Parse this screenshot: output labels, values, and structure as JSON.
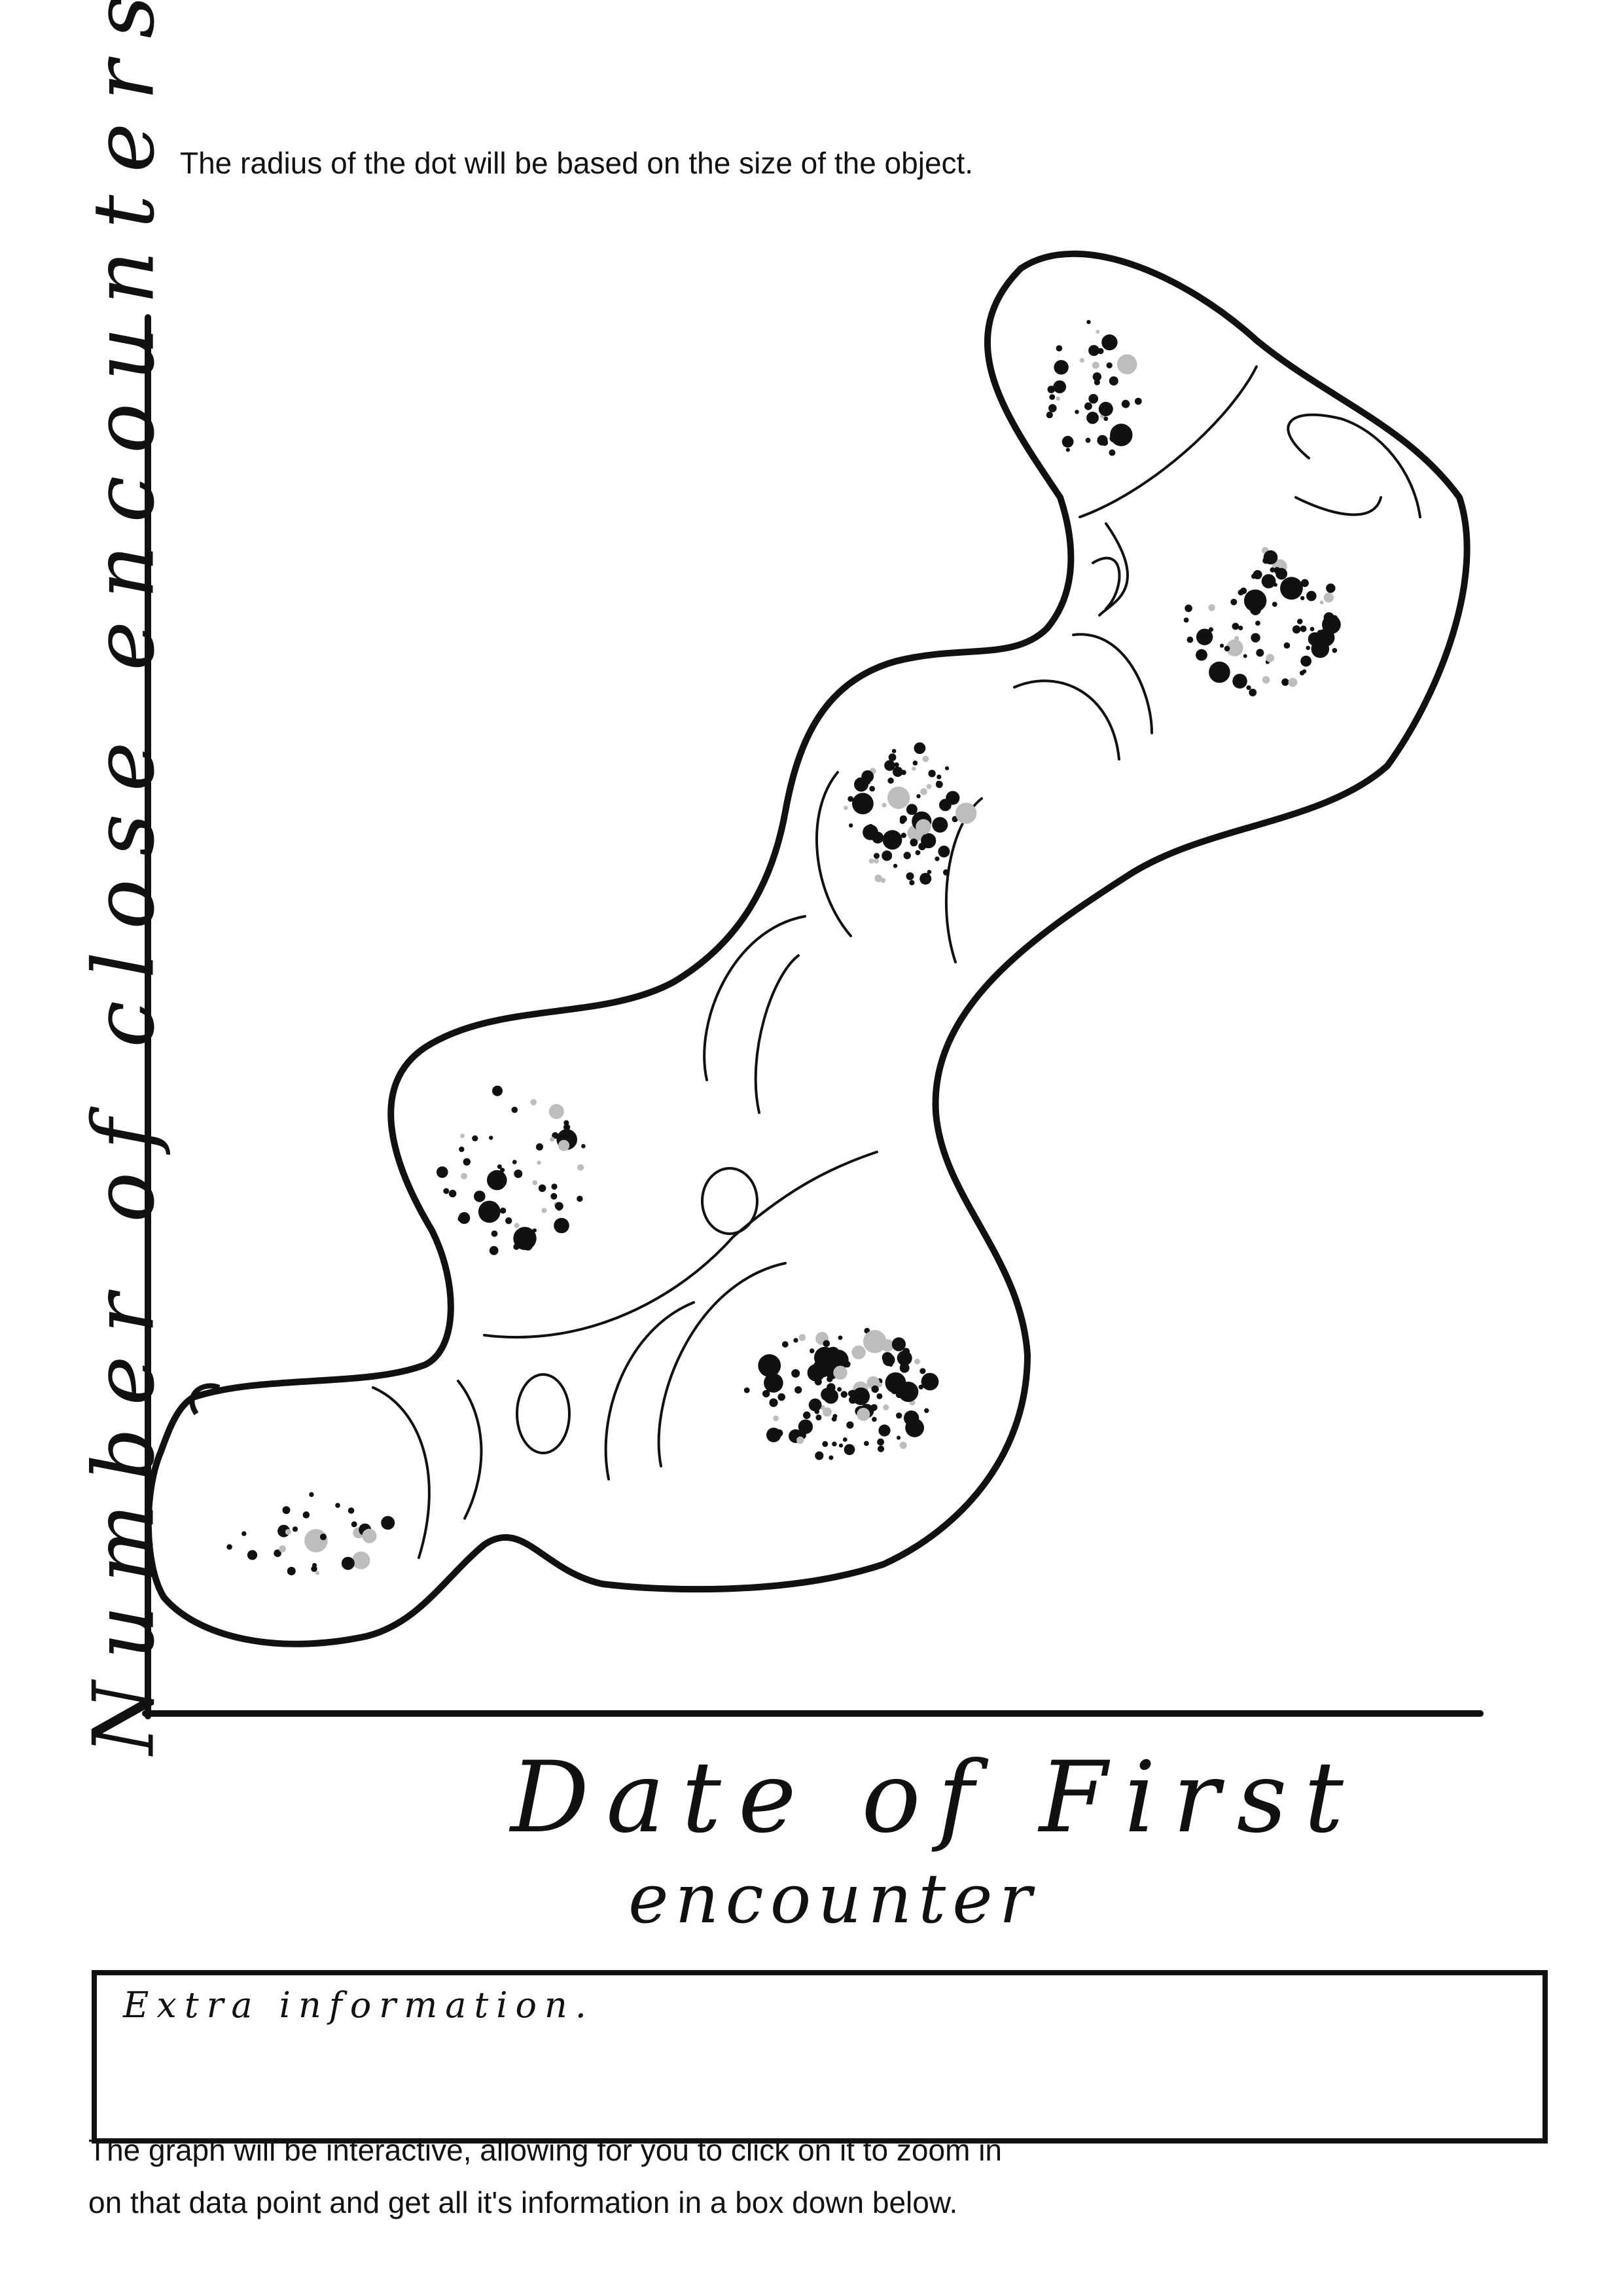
{
  "notes": {
    "top": "The radius of the dot will be based on the size of the object.",
    "bottom_line1": "The graph will be interactive, allowing for you to click on it to zoom in",
    "bottom_line2": "on that data point and get all it's information in a box down below."
  },
  "axes": {
    "y_label": "Number of close encounters",
    "x_label_line1": "Date of First",
    "x_label_line2": "encounter"
  },
  "info_box": {
    "label": "Extra information."
  },
  "colors": {
    "ink": "#111111",
    "dot_light": "#bdbdbd",
    "background": "#ffffff"
  }
}
